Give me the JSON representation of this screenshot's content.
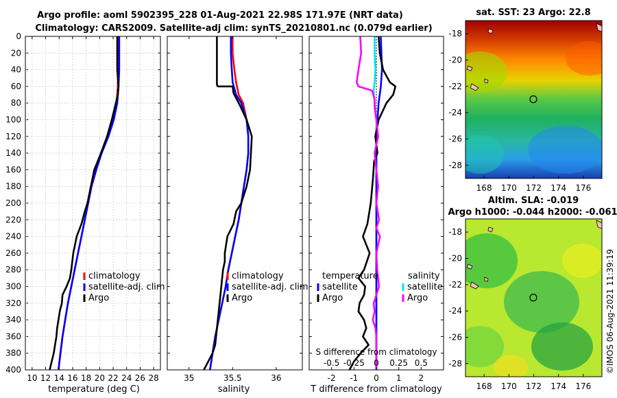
{
  "header": {
    "title_line1": "Argo profile: aoml 5902395_228 01-Aug-2021 22.98S 171.97E (NRT data)",
    "title_line2": "Climatology: CARS2009. Satellite-adj clim: synTS_20210801.nc (0.079d earlier)",
    "watermark": "©IMOS 06-Aug-2021 11:39:19"
  },
  "colors": {
    "climatology": "#ff0000",
    "satellite": "#0000ff",
    "argo": "#000000",
    "sat_salinity": "#00e5ee",
    "argo_salinity": "#ff00ff"
  },
  "depth_axis": {
    "ticks": [
      0,
      20,
      40,
      60,
      80,
      100,
      120,
      140,
      160,
      180,
      200,
      220,
      240,
      260,
      280,
      300,
      320,
      340,
      360,
      380,
      400
    ],
    "ylim": [
      0,
      400
    ]
  },
  "chart_data": [
    {
      "type": "line",
      "name": "temperature-profile",
      "xlabel": "temperature (deg C)",
      "xlim": [
        9,
        29
      ],
      "xticks": [
        10,
        12,
        14,
        16,
        18,
        20,
        22,
        24,
        26,
        28
      ],
      "legend": [
        "climatology",
        "satellite-adj. clim",
        "Argo"
      ],
      "series": [
        {
          "name": "climatology",
          "points": [
            [
              22.7,
              0
            ],
            [
              22.7,
              40
            ],
            [
              22.7,
              60
            ],
            [
              22.5,
              80
            ],
            [
              22.0,
              100
            ],
            [
              21.2,
              120
            ],
            [
              20.2,
              140
            ],
            [
              19.5,
              160
            ],
            [
              18.8,
              180
            ],
            [
              18.3,
              200
            ],
            [
              17.8,
              220
            ],
            [
              17.3,
              240
            ],
            [
              16.8,
              260
            ],
            [
              16.3,
              280
            ],
            [
              15.8,
              300
            ],
            [
              15.3,
              320
            ],
            [
              14.9,
              340
            ],
            [
              14.5,
              360
            ],
            [
              14.2,
              380
            ],
            [
              13.9,
              400
            ]
          ]
        },
        {
          "name": "satellite-adj. clim",
          "points": [
            [
              22.9,
              0
            ],
            [
              22.9,
              40
            ],
            [
              22.8,
              60
            ],
            [
              22.6,
              80
            ],
            [
              22.1,
              100
            ],
            [
              21.3,
              120
            ],
            [
              20.3,
              140
            ],
            [
              19.5,
              160
            ],
            [
              18.8,
              180
            ],
            [
              18.3,
              200
            ],
            [
              17.8,
              220
            ],
            [
              17.3,
              240
            ],
            [
              16.8,
              260
            ],
            [
              16.3,
              280
            ],
            [
              15.8,
              300
            ],
            [
              15.3,
              320
            ],
            [
              14.9,
              340
            ],
            [
              14.5,
              360
            ],
            [
              14.2,
              380
            ],
            [
              13.9,
              400
            ]
          ]
        },
        {
          "name": "Argo",
          "points": [
            [
              22.6,
              0
            ],
            [
              22.6,
              40
            ],
            [
              22.8,
              60
            ],
            [
              22.7,
              70
            ],
            [
              22.4,
              80
            ],
            [
              21.8,
              100
            ],
            [
              21.1,
              120
            ],
            [
              20.2,
              140
            ],
            [
              19.7,
              150
            ],
            [
              19.2,
              160
            ],
            [
              18.7,
              180
            ],
            [
              18.2,
              200
            ],
            [
              17.8,
              210
            ],
            [
              17.3,
              225
            ],
            [
              16.6,
              240
            ],
            [
              16.1,
              260
            ],
            [
              15.8,
              280
            ],
            [
              15.6,
              290
            ],
            [
              15.1,
              300
            ],
            [
              14.5,
              310
            ],
            [
              14.4,
              320
            ],
            [
              14.1,
              330
            ],
            [
              13.9,
              340
            ],
            [
              13.7,
              350
            ],
            [
              13.6,
              360
            ],
            [
              13.4,
              370
            ],
            [
              13.2,
              380
            ],
            [
              12.9,
              390
            ],
            [
              12.6,
              400
            ]
          ]
        }
      ]
    },
    {
      "type": "line",
      "name": "salinity-profile",
      "xlabel": "salinity",
      "xlim": [
        34.75,
        36.3
      ],
      "xticks": [
        35,
        35.5,
        36
      ],
      "legend": [
        "climatology",
        "satellite-adj. clim",
        "Argo"
      ],
      "series": [
        {
          "name": "climatology",
          "points": [
            [
              35.5,
              0
            ],
            [
              35.5,
              20
            ],
            [
              35.52,
              40
            ],
            [
              35.54,
              55
            ],
            [
              35.57,
              70
            ],
            [
              35.62,
              80
            ],
            [
              35.66,
              100
            ],
            [
              35.68,
              120
            ],
            [
              35.68,
              140
            ],
            [
              35.66,
              160
            ],
            [
              35.63,
              180
            ],
            [
              35.6,
              200
            ],
            [
              35.57,
              220
            ],
            [
              35.53,
              240
            ],
            [
              35.49,
              260
            ],
            [
              35.45,
              280
            ],
            [
              35.42,
              300
            ],
            [
              35.38,
              320
            ],
            [
              35.34,
              340
            ],
            [
              35.3,
              360
            ],
            [
              35.27,
              380
            ],
            [
              35.24,
              400
            ]
          ]
        },
        {
          "name": "satellite-adj. clim",
          "points": [
            [
              35.48,
              0
            ],
            [
              35.48,
              20
            ],
            [
              35.49,
              40
            ],
            [
              35.5,
              55
            ],
            [
              35.54,
              70
            ],
            [
              35.6,
              80
            ],
            [
              35.66,
              100
            ],
            [
              35.68,
              120
            ],
            [
              35.68,
              140
            ],
            [
              35.66,
              160
            ],
            [
              35.63,
              180
            ],
            [
              35.6,
              200
            ],
            [
              35.57,
              220
            ],
            [
              35.53,
              240
            ],
            [
              35.49,
              260
            ],
            [
              35.45,
              280
            ],
            [
              35.42,
              300
            ],
            [
              35.38,
              320
            ],
            [
              35.34,
              340
            ],
            [
              35.3,
              360
            ],
            [
              35.27,
              380
            ],
            [
              35.24,
              400
            ]
          ]
        },
        {
          "name": "Argo",
          "points": [
            [
              35.32,
              0
            ],
            [
              35.32,
              40
            ],
            [
              35.32,
              58
            ],
            [
              35.33,
              60
            ],
            [
              35.5,
              60
            ],
            [
              35.51,
              68
            ],
            [
              35.58,
              82
            ],
            [
              35.66,
              100
            ],
            [
              35.72,
              120
            ],
            [
              35.71,
              140
            ],
            [
              35.7,
              160
            ],
            [
              35.66,
              180
            ],
            [
              35.6,
              200
            ],
            [
              35.54,
              210
            ],
            [
              35.51,
              225
            ],
            [
              35.44,
              240
            ],
            [
              35.41,
              260
            ],
            [
              35.41,
              270
            ],
            [
              35.39,
              280
            ],
            [
              35.37,
              300
            ],
            [
              35.35,
              320
            ],
            [
              35.33,
              340
            ],
            [
              35.31,
              360
            ],
            [
              35.3,
              370
            ],
            [
              35.27,
              380
            ],
            [
              35.22,
              390
            ],
            [
              35.17,
              400
            ]
          ]
        }
      ]
    },
    {
      "type": "line",
      "name": "difference-profile",
      "xlabel": "T difference from climatology",
      "xlabel_top": "S difference from climatology",
      "xlim": [
        -3,
        3
      ],
      "xticks": [
        -2,
        -1,
        0,
        1,
        2
      ],
      "xlim_top": [
        -0.75,
        0.75
      ],
      "xticks_top": [
        -0.5,
        -0.25,
        0,
        0.25,
        0.5
      ],
      "xticklabels_top": [
        "-0.5",
        "-0.25",
        "0",
        "0.25",
        "0.5"
      ],
      "legend_title_temperature": "temperature",
      "legend_title_salinity": "salinity",
      "legend_temperature": [
        "satellite",
        "Argo"
      ],
      "legend_salinity": [
        "satellite",
        "Argo"
      ],
      "series": [
        {
          "name": "T satellite",
          "points": [
            [
              0.2,
              0
            ],
            [
              0.25,
              40
            ],
            [
              0.2,
              60
            ],
            [
              0.1,
              80
            ],
            [
              0.05,
              100
            ],
            [
              0.0,
              120
            ],
            [
              0.0,
              200
            ],
            [
              0.0,
              300
            ],
            [
              0.0,
              400
            ]
          ]
        },
        {
          "name": "T Argo",
          "points": [
            [
              0.1,
              0
            ],
            [
              0.15,
              20
            ],
            [
              0.3,
              40
            ],
            [
              0.6,
              55
            ],
            [
              0.85,
              60
            ],
            [
              0.75,
              70
            ],
            [
              0.45,
              80
            ],
            [
              0.1,
              100
            ],
            [
              -0.05,
              120
            ],
            [
              0.05,
              140
            ],
            [
              -0.1,
              150
            ],
            [
              -0.15,
              170
            ],
            [
              -0.25,
              200
            ],
            [
              -0.4,
              225
            ],
            [
              -0.6,
              240
            ],
            [
              -0.3,
              260
            ],
            [
              -0.55,
              280
            ],
            [
              -0.8,
              290
            ],
            [
              -0.5,
              300
            ],
            [
              -0.55,
              310
            ],
            [
              -0.75,
              320
            ],
            [
              -0.8,
              330
            ],
            [
              -0.55,
              340
            ],
            [
              -0.45,
              350
            ],
            [
              -0.6,
              360
            ],
            [
              -0.35,
              370
            ],
            [
              -0.7,
              380
            ],
            [
              -1.0,
              390
            ],
            [
              -1.2,
              400
            ]
          ]
        },
        {
          "name": "S satellite",
          "points": [
            [
              -0.02,
              0
            ],
            [
              -0.02,
              20
            ],
            [
              -0.01,
              40
            ],
            [
              -0.02,
              55
            ],
            [
              -0.03,
              65
            ],
            [
              -0.02,
              80
            ],
            [
              0.0,
              100
            ],
            [
              0.0,
              200
            ],
            [
              0.0,
              300
            ],
            [
              0.0,
              400
            ]
          ]
        },
        {
          "name": "S Argo",
          "points": [
            [
              -0.18,
              0
            ],
            [
              -0.17,
              20
            ],
            [
              -0.2,
              40
            ],
            [
              -0.22,
              55
            ],
            [
              -0.2,
              60
            ],
            [
              -0.05,
              65
            ],
            [
              -0.02,
              75
            ],
            [
              -0.02,
              85
            ],
            [
              0.0,
              100
            ],
            [
              0.02,
              120
            ],
            [
              -0.02,
              140
            ],
            [
              0.0,
              160
            ],
            [
              0.02,
              180
            ],
            [
              0.0,
              200
            ],
            [
              0.03,
              220
            ],
            [
              0.0,
              230
            ],
            [
              0.04,
              240
            ],
            [
              0.0,
              260
            ],
            [
              0.01,
              280
            ],
            [
              0.03,
              300
            ],
            [
              0.0,
              310
            ],
            [
              -0.03,
              320
            ],
            [
              -0.02,
              330
            ],
            [
              -0.04,
              340
            ],
            [
              -0.01,
              350
            ],
            [
              0.0,
              360
            ],
            [
              0.0,
              400
            ]
          ]
        }
      ]
    },
    {
      "type": "heatmap",
      "name": "sst-map",
      "title": "sat. SST: 23 Argo: 22.8",
      "xticks": [
        168,
        170,
        172,
        174,
        176
      ],
      "yticks": [
        -18,
        -20,
        -22,
        -24,
        -26,
        -28
      ],
      "xlim": [
        166.5,
        177.5
      ],
      "ylim": [
        -29,
        -17
      ],
      "marker": [
        171.97,
        -22.98
      ]
    },
    {
      "type": "heatmap",
      "name": "sla-map",
      "title": "Altim. SLA: -0.019",
      "subtitle": "Argo h1000: -0.044 h2000: -0.061",
      "xticks": [
        168,
        170,
        172,
        174,
        176
      ],
      "yticks": [
        -18,
        -20,
        -22,
        -24,
        -26,
        -28
      ],
      "xlim": [
        166.5,
        177.5
      ],
      "ylim": [
        -29,
        -17
      ],
      "marker": [
        171.97,
        -22.98
      ]
    }
  ]
}
